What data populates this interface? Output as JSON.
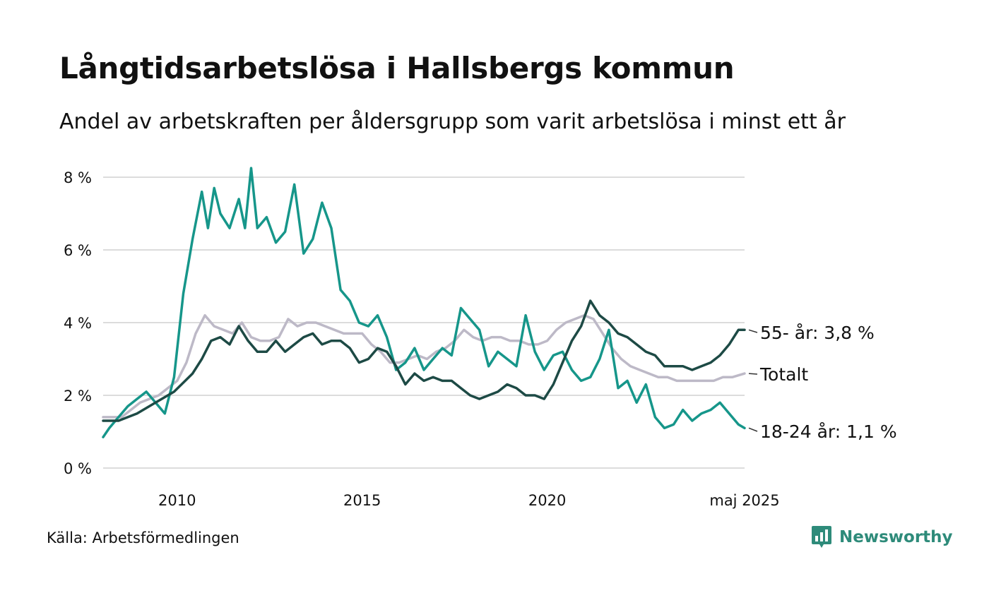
{
  "title": "Långtidsarbetslösa i Hallsbergs kommun",
  "subtitle": "Andel av arbetskraften per åldersgrupp som varit arbetslösa i minst ett år",
  "source": "Källa: Arbetsförmedlingen",
  "brand": {
    "name": "Newsworthy",
    "icon": "newsworthy-logo-icon",
    "color": "#2e8b7a"
  },
  "chart_data": {
    "type": "line",
    "title": "Långtidsarbetslösa i Hallsbergs kommun",
    "xlabel": "",
    "ylabel": "",
    "x_start": "2008-01",
    "x_end": "2025-05",
    "xlim": [
      "2008-01",
      "2025-05"
    ],
    "x_ticks": [
      {
        "date": "2010-01",
        "label": "2010"
      },
      {
        "date": "2015-01",
        "label": "2015"
      },
      {
        "date": "2020-01",
        "label": "2020"
      },
      {
        "date": "2025-05",
        "label": "maj 2025"
      }
    ],
    "y_ticks": [
      {
        "value": 0,
        "label": "0 %"
      },
      {
        "value": 2,
        "label": "2 %"
      },
      {
        "value": 4,
        "label": "4 %"
      },
      {
        "value": 6,
        "label": "6 %"
      },
      {
        "value": 8,
        "label": "8 %"
      }
    ],
    "ylim": [
      0,
      8.2
    ],
    "grid": true,
    "legend": "end labels at right",
    "series": [
      {
        "name": "Totalt",
        "end_label": "Totalt",
        "color": "#bdb9c7",
        "points": [
          [
            "2008-01",
            1.4
          ],
          [
            "2008-07",
            1.4
          ],
          [
            "2009-01",
            1.8
          ],
          [
            "2009-07",
            2.0
          ],
          [
            "2010-01",
            2.4
          ],
          [
            "2010-04",
            2.9
          ],
          [
            "2010-07",
            3.7
          ],
          [
            "2010-10",
            4.2
          ],
          [
            "2011-01",
            3.9
          ],
          [
            "2011-04",
            3.8
          ],
          [
            "2011-07",
            3.7
          ],
          [
            "2011-10",
            4.0
          ],
          [
            "2012-01",
            3.6
          ],
          [
            "2012-04",
            3.5
          ],
          [
            "2012-07",
            3.5
          ],
          [
            "2012-10",
            3.6
          ],
          [
            "2013-01",
            4.1
          ],
          [
            "2013-04",
            3.9
          ],
          [
            "2013-07",
            4.0
          ],
          [
            "2013-10",
            4.0
          ],
          [
            "2014-01",
            3.9
          ],
          [
            "2014-04",
            3.8
          ],
          [
            "2014-07",
            3.7
          ],
          [
            "2014-10",
            3.7
          ],
          [
            "2015-01",
            3.7
          ],
          [
            "2015-04",
            3.4
          ],
          [
            "2015-07",
            3.2
          ],
          [
            "2015-10",
            2.9
          ],
          [
            "2016-01",
            2.9
          ],
          [
            "2016-04",
            3.0
          ],
          [
            "2016-07",
            3.1
          ],
          [
            "2016-10",
            3.0
          ],
          [
            "2017-01",
            3.2
          ],
          [
            "2017-04",
            3.3
          ],
          [
            "2017-07",
            3.5
          ],
          [
            "2017-10",
            3.8
          ],
          [
            "2018-01",
            3.6
          ],
          [
            "2018-04",
            3.5
          ],
          [
            "2018-07",
            3.6
          ],
          [
            "2018-10",
            3.6
          ],
          [
            "2019-01",
            3.5
          ],
          [
            "2019-04",
            3.5
          ],
          [
            "2019-07",
            3.4
          ],
          [
            "2019-10",
            3.4
          ],
          [
            "2020-01",
            3.5
          ],
          [
            "2020-04",
            3.8
          ],
          [
            "2020-07",
            4.0
          ],
          [
            "2020-10",
            4.1
          ],
          [
            "2021-01",
            4.2
          ],
          [
            "2021-04",
            4.1
          ],
          [
            "2021-07",
            3.7
          ],
          [
            "2021-10",
            3.3
          ],
          [
            "2022-01",
            3.0
          ],
          [
            "2022-04",
            2.8
          ],
          [
            "2022-07",
            2.7
          ],
          [
            "2022-10",
            2.6
          ],
          [
            "2023-01",
            2.5
          ],
          [
            "2023-04",
            2.5
          ],
          [
            "2023-07",
            2.4
          ],
          [
            "2023-10",
            2.4
          ],
          [
            "2024-01",
            2.4
          ],
          [
            "2024-04",
            2.4
          ],
          [
            "2024-07",
            2.4
          ],
          [
            "2024-10",
            2.5
          ],
          [
            "2025-01",
            2.5
          ],
          [
            "2025-05",
            2.6
          ]
        ]
      },
      {
        "name": "18-24 år",
        "end_label": "18-24 år: 1,1 %",
        "color": "#16968a",
        "points": [
          [
            "2008-01",
            0.85
          ],
          [
            "2008-03",
            1.1
          ],
          [
            "2008-06",
            1.4
          ],
          [
            "2008-09",
            1.7
          ],
          [
            "2008-12",
            1.9
          ],
          [
            "2009-03",
            2.1
          ],
          [
            "2009-06",
            1.8
          ],
          [
            "2009-09",
            1.5
          ],
          [
            "2009-12",
            2.5
          ],
          [
            "2010-03",
            4.8
          ],
          [
            "2010-06",
            6.3
          ],
          [
            "2010-09",
            7.6
          ],
          [
            "2010-11",
            6.6
          ],
          [
            "2011-01",
            7.7
          ],
          [
            "2011-03",
            7.0
          ],
          [
            "2011-06",
            6.6
          ],
          [
            "2011-09",
            7.4
          ],
          [
            "2011-11",
            6.6
          ],
          [
            "2012-01",
            8.25
          ],
          [
            "2012-03",
            6.6
          ],
          [
            "2012-06",
            6.9
          ],
          [
            "2012-09",
            6.2
          ],
          [
            "2012-12",
            6.5
          ],
          [
            "2013-03",
            7.8
          ],
          [
            "2013-06",
            5.9
          ],
          [
            "2013-09",
            6.3
          ],
          [
            "2013-12",
            7.3
          ],
          [
            "2014-03",
            6.6
          ],
          [
            "2014-06",
            4.9
          ],
          [
            "2014-09",
            4.6
          ],
          [
            "2014-12",
            4.0
          ],
          [
            "2015-03",
            3.9
          ],
          [
            "2015-06",
            4.2
          ],
          [
            "2015-09",
            3.6
          ],
          [
            "2015-12",
            2.7
          ],
          [
            "2016-03",
            2.9
          ],
          [
            "2016-06",
            3.3
          ],
          [
            "2016-09",
            2.7
          ],
          [
            "2016-12",
            3.0
          ],
          [
            "2017-03",
            3.3
          ],
          [
            "2017-06",
            3.1
          ],
          [
            "2017-09",
            4.4
          ],
          [
            "2017-12",
            4.1
          ],
          [
            "2018-03",
            3.8
          ],
          [
            "2018-06",
            2.8
          ],
          [
            "2018-09",
            3.2
          ],
          [
            "2018-12",
            3.0
          ],
          [
            "2019-03",
            2.8
          ],
          [
            "2019-06",
            4.2
          ],
          [
            "2019-09",
            3.2
          ],
          [
            "2019-12",
            2.7
          ],
          [
            "2020-03",
            3.1
          ],
          [
            "2020-06",
            3.2
          ],
          [
            "2020-09",
            2.7
          ],
          [
            "2020-12",
            2.4
          ],
          [
            "2021-03",
            2.5
          ],
          [
            "2021-06",
            3.0
          ],
          [
            "2021-09",
            3.8
          ],
          [
            "2021-12",
            2.2
          ],
          [
            "2022-03",
            2.4
          ],
          [
            "2022-06",
            1.8
          ],
          [
            "2022-09",
            2.3
          ],
          [
            "2022-12",
            1.4
          ],
          [
            "2023-03",
            1.1
          ],
          [
            "2023-06",
            1.2
          ],
          [
            "2023-09",
            1.6
          ],
          [
            "2023-12",
            1.3
          ],
          [
            "2024-03",
            1.5
          ],
          [
            "2024-06",
            1.6
          ],
          [
            "2024-09",
            1.8
          ],
          [
            "2024-12",
            1.5
          ],
          [
            "2025-03",
            1.2
          ],
          [
            "2025-05",
            1.1
          ]
        ]
      },
      {
        "name": "55- år",
        "end_label": "55- år: 3,8 %",
        "color": "#1d4a45",
        "points": [
          [
            "2008-01",
            1.3
          ],
          [
            "2008-06",
            1.3
          ],
          [
            "2008-12",
            1.5
          ],
          [
            "2009-06",
            1.8
          ],
          [
            "2009-12",
            2.1
          ],
          [
            "2010-06",
            2.6
          ],
          [
            "2010-09",
            3.0
          ],
          [
            "2010-12",
            3.5
          ],
          [
            "2011-03",
            3.6
          ],
          [
            "2011-06",
            3.4
          ],
          [
            "2011-09",
            3.9
          ],
          [
            "2011-12",
            3.5
          ],
          [
            "2012-03",
            3.2
          ],
          [
            "2012-06",
            3.2
          ],
          [
            "2012-09",
            3.5
          ],
          [
            "2012-12",
            3.2
          ],
          [
            "2013-03",
            3.4
          ],
          [
            "2013-06",
            3.6
          ],
          [
            "2013-09",
            3.7
          ],
          [
            "2013-12",
            3.4
          ],
          [
            "2014-03",
            3.5
          ],
          [
            "2014-06",
            3.5
          ],
          [
            "2014-09",
            3.3
          ],
          [
            "2014-12",
            2.9
          ],
          [
            "2015-03",
            3.0
          ],
          [
            "2015-06",
            3.3
          ],
          [
            "2015-09",
            3.2
          ],
          [
            "2015-12",
            2.8
          ],
          [
            "2016-03",
            2.3
          ],
          [
            "2016-06",
            2.6
          ],
          [
            "2016-09",
            2.4
          ],
          [
            "2016-12",
            2.5
          ],
          [
            "2017-03",
            2.4
          ],
          [
            "2017-06",
            2.4
          ],
          [
            "2017-09",
            2.2
          ],
          [
            "2017-12",
            2.0
          ],
          [
            "2018-03",
            1.9
          ],
          [
            "2018-06",
            2.0
          ],
          [
            "2018-09",
            2.1
          ],
          [
            "2018-12",
            2.3
          ],
          [
            "2019-03",
            2.2
          ],
          [
            "2019-06",
            2.0
          ],
          [
            "2019-09",
            2.0
          ],
          [
            "2019-12",
            1.9
          ],
          [
            "2020-03",
            2.3
          ],
          [
            "2020-06",
            2.9
          ],
          [
            "2020-09",
            3.5
          ],
          [
            "2020-12",
            3.9
          ],
          [
            "2021-03",
            4.6
          ],
          [
            "2021-06",
            4.2
          ],
          [
            "2021-09",
            4.0
          ],
          [
            "2021-12",
            3.7
          ],
          [
            "2022-03",
            3.6
          ],
          [
            "2022-06",
            3.4
          ],
          [
            "2022-09",
            3.2
          ],
          [
            "2022-12",
            3.1
          ],
          [
            "2023-03",
            2.8
          ],
          [
            "2023-06",
            2.8
          ],
          [
            "2023-09",
            2.8
          ],
          [
            "2023-12",
            2.7
          ],
          [
            "2024-03",
            2.8
          ],
          [
            "2024-06",
            2.9
          ],
          [
            "2024-09",
            3.1
          ],
          [
            "2024-12",
            3.4
          ],
          [
            "2025-03",
            3.8
          ],
          [
            "2025-05",
            3.8
          ]
        ]
      }
    ]
  }
}
